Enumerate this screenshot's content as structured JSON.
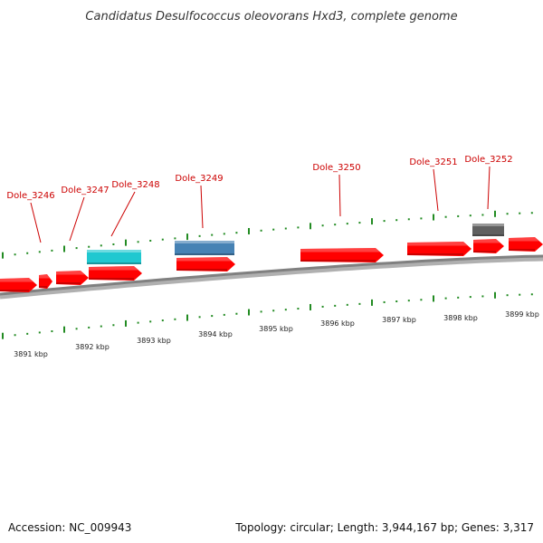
{
  "title": "Candidatus Desulfococcus oleovorans Hxd3, complete genome",
  "footer": {
    "accession": "Accession: NC_009943",
    "info": "Topology: circular; Length: 3,944,167 bp; Genes: 3,317"
  },
  "colors": {
    "gene_forward": "#ff0000",
    "gene_label": "#cc0000",
    "backbone": "#808080",
    "tick": "#228b22",
    "cyan_feature": "#20c8d0",
    "blue_feature": "#4682b4",
    "gray_feature": "#606060"
  },
  "kbp_labels": [
    "3891 kbp",
    "3892 kbp",
    "3893 kbp",
    "3894 kbp",
    "3895 kbp",
    "3896 kbp",
    "3897 kbp",
    "3898 kbp",
    "3899 kbp"
  ],
  "gene_labels": [
    "Dole_3246",
    "Dole_3247",
    "Dole_3248",
    "Dole_3249",
    "Dole_3250",
    "Dole_3251",
    "Dole_3252"
  ]
}
